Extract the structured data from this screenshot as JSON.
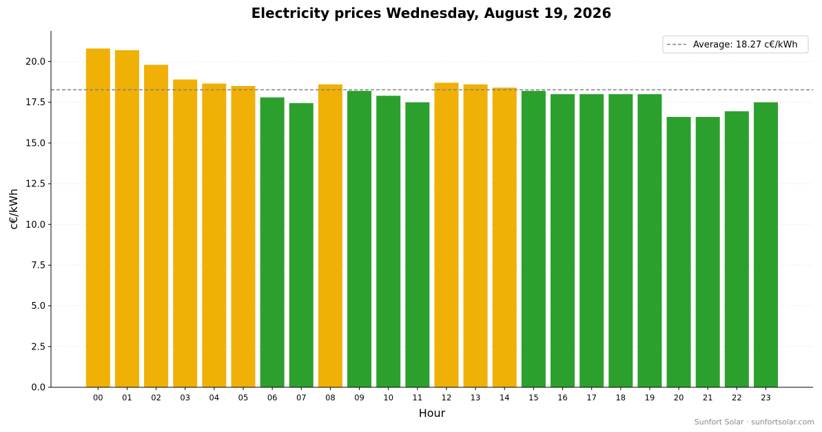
{
  "chart_data": {
    "type": "bar",
    "title": "Electricity prices Wednesday, August 19, 2026",
    "xlabel": "Hour",
    "ylabel": "c€/kWh",
    "ylim": [
      0,
      21.88
    ],
    "yticks": [
      "0.0",
      "2.5",
      "5.0",
      "7.5",
      "10.0",
      "12.5",
      "15.0",
      "17.5",
      "20.0"
    ],
    "grid": "horizontal dotted",
    "categories": [
      "00",
      "01",
      "02",
      "03",
      "04",
      "05",
      "06",
      "07",
      "08",
      "09",
      "10",
      "11",
      "12",
      "13",
      "14",
      "15",
      "16",
      "17",
      "18",
      "19",
      "20",
      "21",
      "22",
      "23"
    ],
    "values": [
      20.8,
      20.7,
      19.8,
      18.9,
      18.65,
      18.5,
      17.8,
      17.45,
      18.6,
      18.2,
      17.9,
      17.5,
      18.7,
      18.6,
      18.4,
      18.2,
      18.0,
      18.0,
      18.0,
      18.0,
      16.6,
      16.6,
      16.95,
      17.5
    ],
    "average": 18.27,
    "legend": {
      "placement": "top-right",
      "label": "Average: 18.27 c€/kWh"
    },
    "colors": {
      "above_average": "#f0b006",
      "below_average": "#2ca02c",
      "average_line": "#808080",
      "grid": "#dddddd"
    }
  },
  "footer": {
    "credit": "Sunfort Solar · sunfortsolar.com"
  }
}
